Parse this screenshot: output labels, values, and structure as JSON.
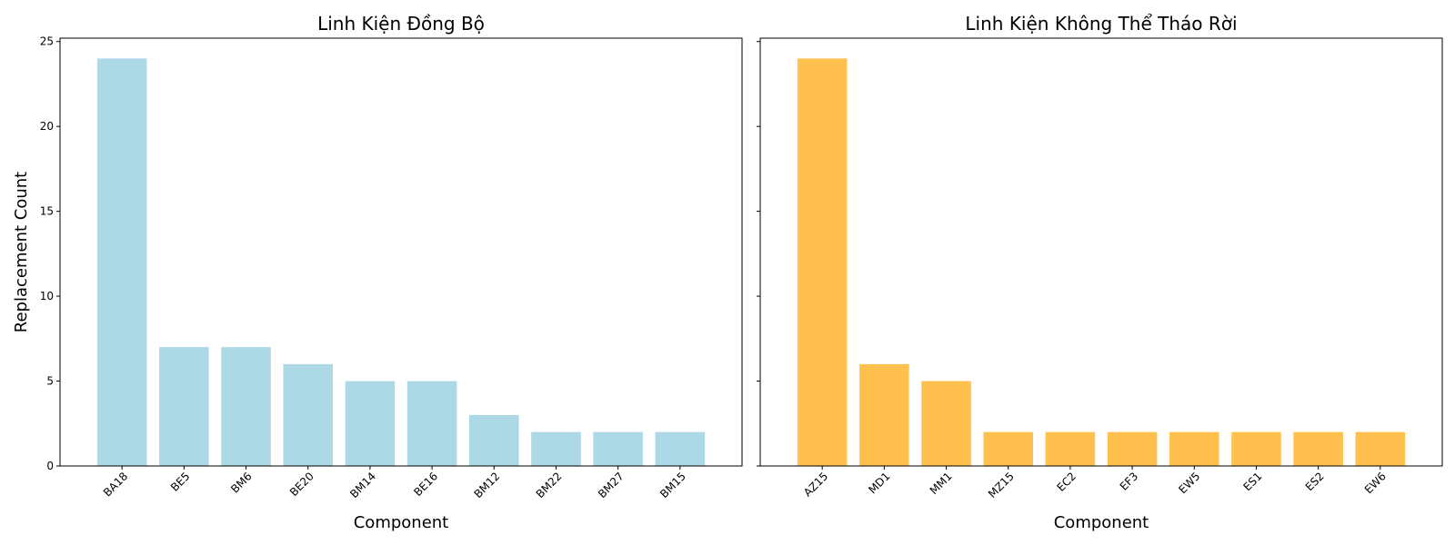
{
  "chart_data": [
    {
      "type": "bar",
      "title": "Linh Kiện Đồng Bộ",
      "xlabel": "Component",
      "ylabel": "Replacement Count",
      "categories": [
        "BA18",
        "BE5",
        "BM6",
        "BE20",
        "BM14",
        "BE16",
        "BM12",
        "BM22",
        "BM27",
        "BM15"
      ],
      "values": [
        24,
        7,
        7,
        6,
        5,
        5,
        3,
        2,
        2,
        2
      ],
      "ylim": [
        0,
        25.2
      ],
      "yticks": [
        0,
        5,
        10,
        15,
        20,
        25
      ],
      "color": "#add8e6",
      "grid": false
    },
    {
      "type": "bar",
      "title": "Linh Kiện Không Thể Tháo Rời",
      "xlabel": "Component",
      "ylabel": "",
      "categories": [
        "AZ15",
        "MD1",
        "MM1",
        "MZ15",
        "EC2",
        "EF3",
        "EW5",
        "ES1",
        "ES2",
        "EW6"
      ],
      "values": [
        24,
        6,
        5,
        2,
        2,
        2,
        2,
        2,
        2,
        2
      ],
      "ylim": [
        0,
        25.2
      ],
      "yticks": [
        0,
        5,
        10,
        15,
        20,
        25
      ],
      "color": "#ffc04d",
      "grid": false
    }
  ]
}
